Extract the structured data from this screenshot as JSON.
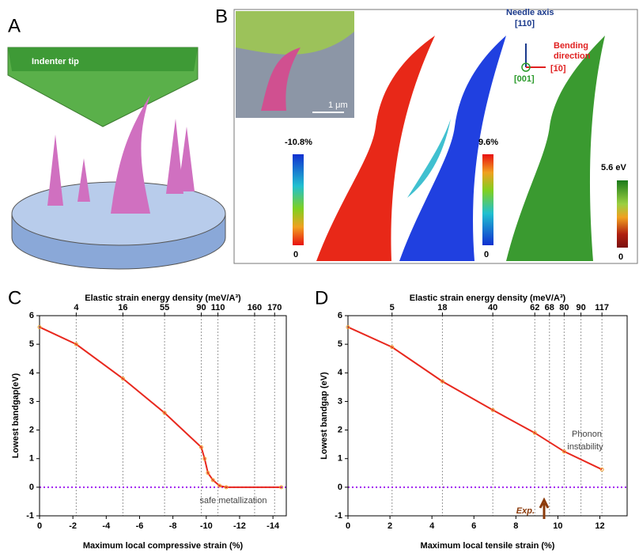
{
  "figure": {
    "panel_a": {
      "label": "A",
      "tip": "Indenter tip"
    },
    "panel_b": {
      "label": "B",
      "scale": "1 μm",
      "needle_axis": "Needle axis",
      "needle_dir": "[110]",
      "bending": "Bending",
      "direction": "direction",
      "bend_dir": "[1̅0]",
      "normal_dir": "[001]",
      "bar1_top": "-10.8%",
      "bar1_bottom": "0",
      "bar2_top": "9.6%",
      "bar2_bottom": "0",
      "bar3_top": "5.6 eV",
      "bar3_bottom": "0"
    }
  },
  "chart_data": [
    {
      "type": "line",
      "panel": "C",
      "top_label": "Elastic strain energy density (meV/A³)",
      "xlabel": "Maximum local compressive strain (%)",
      "ylabel": "Lowest bandgap(eV)",
      "x": [
        0,
        -2.2,
        -5,
        -7.5,
        -9.7,
        -9.9,
        -10.1,
        -10.4,
        -10.8,
        -11.2,
        -14.5
      ],
      "values": [
        5.6,
        5.0,
        3.8,
        2.6,
        1.4,
        1.0,
        0.5,
        0.25,
        0.05,
        0,
        0
      ],
      "color": "#e8281e",
      "marker_color": "#f0a030",
      "xlim": [
        0,
        -14.8
      ],
      "ylim": [
        -1,
        6
      ],
      "xticks": [
        0,
        -2,
        -4,
        -6,
        -8,
        -10,
        -12,
        -14
      ],
      "yticks": [
        -1,
        0,
        1,
        2,
        3,
        4,
        5,
        6
      ],
      "x2ticks": [
        4,
        16,
        55,
        90,
        110,
        160,
        170
      ],
      "x2tick_positions": [
        -2.2,
        -5.0,
        -7.5,
        -9.7,
        -10.7,
        -12.9,
        -14.1
      ],
      "reference_line": {
        "value": 0,
        "color": "#a020f0"
      },
      "annotations": [
        "safe metallization"
      ]
    },
    {
      "type": "line",
      "panel": "D",
      "top_label": "Elastic strain energy density (meV/A³)",
      "xlabel": "Maximum local tensile strain (%)",
      "ylabel": "Lowest bandgap (eV)",
      "x": [
        0,
        2.1,
        4.5,
        6.9,
        8.9,
        10.3,
        12.1
      ],
      "values": [
        5.6,
        4.9,
        3.7,
        2.7,
        1.9,
        1.25,
        0.62
      ],
      "color": "#e8281e",
      "marker_color": "#f0a030",
      "xlim": [
        0,
        13.3
      ],
      "ylim": [
        -1,
        6
      ],
      "xticks": [
        0,
        2,
        4,
        6,
        8,
        10,
        12
      ],
      "yticks": [
        -1,
        0,
        1,
        2,
        3,
        4,
        5,
        6
      ],
      "x2ticks": [
        5,
        18,
        40,
        62,
        68,
        80,
        90,
        117
      ],
      "x2tick_positions": [
        2.1,
        4.5,
        6.9,
        8.9,
        9.6,
        10.3,
        11.1,
        12.1
      ],
      "reference_line": {
        "value": 0,
        "color": "#a020f0"
      },
      "annotations": [
        "Phonon",
        "instability",
        "Exp."
      ]
    }
  ]
}
